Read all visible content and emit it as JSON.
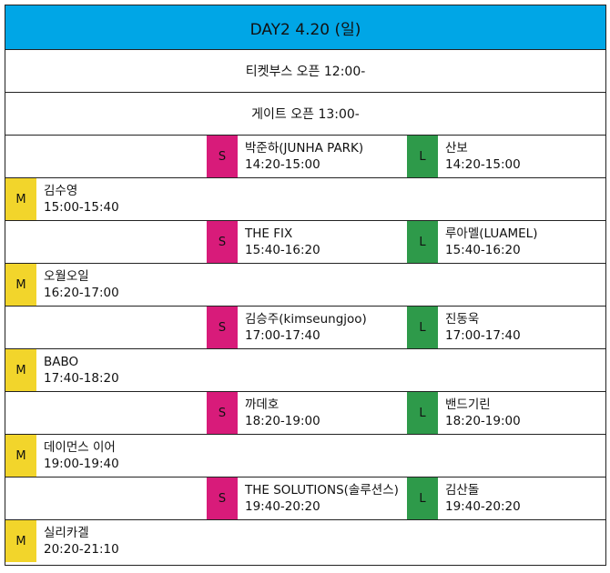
{
  "header": {
    "title": "DAY2 4.20 (일)"
  },
  "info": [
    {
      "text": "티켓부스 오픈 12:00-"
    },
    {
      "text": "게이트 오픈 13:00-"
    }
  ],
  "stage_badges": {
    "m": "M",
    "s": "S",
    "l": "L"
  },
  "rows": [
    {
      "type": "SL",
      "s": {
        "name": "박준하(JUNHA PARK)",
        "time": "14:20-15:00"
      },
      "l": {
        "name": "산보",
        "time": "14:20-15:00"
      }
    },
    {
      "type": "M",
      "m": {
        "name": "김수영",
        "time": "15:00-15:40"
      }
    },
    {
      "type": "SL",
      "s": {
        "name": "THE FIX",
        "time": "15:40-16:20"
      },
      "l": {
        "name": "루아멜(LUAMEL)",
        "time": "15:40-16:20"
      }
    },
    {
      "type": "M",
      "m": {
        "name": "오월오일",
        "time": "16:20-17:00"
      }
    },
    {
      "type": "SL",
      "s": {
        "name": "김승주(kimseungjoo)",
        "time": "17:00-17:40"
      },
      "l": {
        "name": "진동욱",
        "time": "17:00-17:40"
      }
    },
    {
      "type": "M",
      "m": {
        "name": "BABO",
        "time": "17:40-18:20"
      }
    },
    {
      "type": "SL",
      "s": {
        "name": "까데호",
        "time": "18:20-19:00"
      },
      "l": {
        "name": "밴드기린",
        "time": "18:20-19:00"
      }
    },
    {
      "type": "M",
      "m": {
        "name": "데이먼스 이어",
        "time": "19:00-19:40"
      }
    },
    {
      "type": "SL",
      "s": {
        "name": "THE SOLUTIONS(솔루션스)",
        "time": "19:40-20:20"
      },
      "l": {
        "name": "김산돌",
        "time": "19:40-20:20"
      }
    },
    {
      "type": "M",
      "m": {
        "name": "실리카겔",
        "time": "20:20-21:10"
      }
    }
  ],
  "colors": {
    "header": "#00a6e6",
    "stage_m": "#f2d52b",
    "stage_s": "#d81b7a",
    "stage_l": "#2e9a4a"
  }
}
